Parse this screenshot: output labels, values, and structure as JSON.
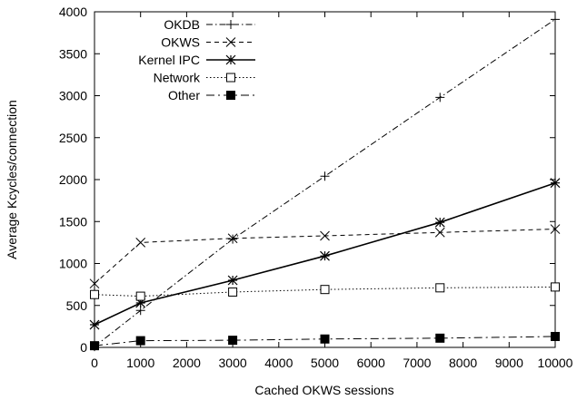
{
  "chart_data": {
    "type": "line",
    "title": "",
    "xlabel": "Cached OKWS sessions",
    "ylabel": "Average Kcycles/connection",
    "xlim": [
      0,
      10000
    ],
    "ylim": [
      0,
      4000
    ],
    "xticks": [
      0,
      1000,
      2000,
      3000,
      4000,
      5000,
      6000,
      7000,
      8000,
      9000,
      10000
    ],
    "yticks": [
      0,
      500,
      1000,
      1500,
      2000,
      2500,
      3000,
      3500,
      4000
    ],
    "xtick_labels": [
      "0",
      "1000",
      "2000",
      "3000",
      "4000",
      "5000",
      "6000",
      "7000",
      "8000",
      "9000",
      "10000"
    ],
    "ytick_labels": [
      "0",
      "500",
      "1000",
      "1500",
      "2000",
      "2500",
      "3000",
      "3500",
      "4000"
    ],
    "legend_position": "top-left",
    "grid": false,
    "series": [
      {
        "name": "OKDB",
        "marker": "plus",
        "dash": "dash-dot",
        "x": [
          0,
          1000,
          3000,
          5000,
          7500,
          10000
        ],
        "y": [
          10,
          440,
          1290,
          2040,
          2980,
          3910
        ]
      },
      {
        "name": "OKWS",
        "marker": "cross",
        "dash": "dashed",
        "x": [
          0,
          1000,
          3000,
          5000,
          7500,
          10000
        ],
        "y": [
          760,
          1250,
          1300,
          1330,
          1370,
          1410
        ]
      },
      {
        "name": "Kernel IPC",
        "marker": "star",
        "dash": "solid",
        "x": [
          0,
          1000,
          3000,
          5000,
          7500,
          10000
        ],
        "y": [
          270,
          530,
          800,
          1090,
          1490,
          1960
        ]
      },
      {
        "name": "Network",
        "marker": "open-square",
        "dash": "dotted",
        "x": [
          0,
          1000,
          3000,
          5000,
          7500,
          10000
        ],
        "y": [
          630,
          610,
          660,
          690,
          710,
          720
        ]
      },
      {
        "name": "Other",
        "marker": "filled-square",
        "dash": "long-dash-dot",
        "x": [
          0,
          1000,
          3000,
          5000,
          7500,
          10000
        ],
        "y": [
          20,
          80,
          85,
          100,
          110,
          130
        ]
      }
    ]
  }
}
